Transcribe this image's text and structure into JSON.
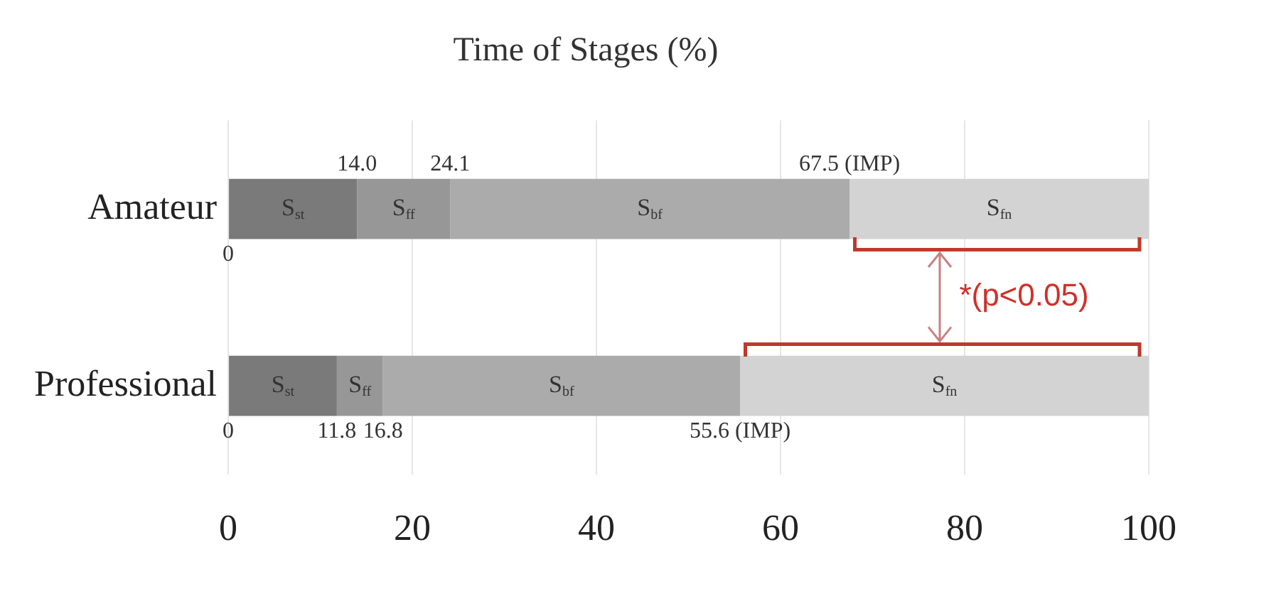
{
  "chart_data": {
    "type": "bar",
    "orientation": "horizontal",
    "stacked": true,
    "title": "Time of Stages (%)",
    "categories": [
      "Amateur",
      "Professional"
    ],
    "series": [
      {
        "name": "S$_{st}$",
        "color": "#7a7a7a",
        "values": [
          14.0,
          11.8
        ]
      },
      {
        "name": "S$_{ff}$",
        "color": "#979797",
        "values": [
          10.1,
          5.0
        ]
      },
      {
        "name": "S$_{bf}$",
        "color": "#ababab",
        "values": [
          43.4,
          38.8
        ]
      },
      {
        "name": "S$_{fn}$",
        "color": "#d3d3d3",
        "values": [
          32.5,
          44.4
        ]
      }
    ],
    "xlim": [
      0,
      100
    ],
    "xticks": [
      0,
      20,
      40,
      60,
      80,
      100
    ],
    "grid": "x",
    "legend": false,
    "annotations": [
      {
        "text": "0",
        "x": 0,
        "y": "Amateur"
      },
      {
        "text": "14.0",
        "x": 14.0,
        "y": "Amateur"
      },
      {
        "text": "24.1",
        "x": 24.1,
        "y": "Amateur"
      },
      {
        "text": "67.5 (IMP)",
        "x": 67.5,
        "y": "Amateur"
      },
      {
        "text": "0",
        "x": 0,
        "y": "Professional"
      },
      {
        "text": "11.8",
        "x": 11.8,
        "y": "Professional"
      },
      {
        "text": "16.8",
        "x": 16.8,
        "y": "Professional"
      },
      {
        "text": "55.6 (IMP)",
        "x": 55.6,
        "y": "Professional"
      },
      "*(p<0.05)"
    ]
  }
}
